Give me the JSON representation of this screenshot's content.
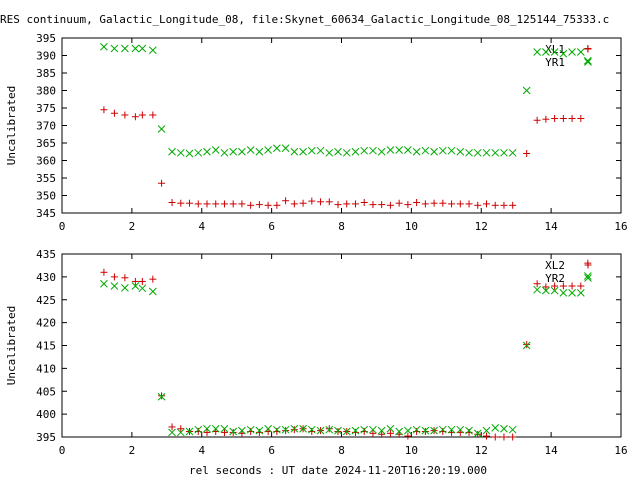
{
  "chart_data": {
    "title": "RES continuum, Galactic_Longitude_08, file:Skynet_60634_Galactic_Longitude_08_125144_75333.c",
    "xlabel": "rel seconds : UT date 2024-11-20T16:20:19.000",
    "x_ticks": [
      "0",
      "2",
      "4",
      "6",
      "8",
      "10",
      "12",
      "14",
      "16"
    ],
    "colors": {
      "red": "#cc0000",
      "green": "#00aa00"
    },
    "panels": [
      {
        "type": "scatter",
        "ylabel": "Uncalibrated",
        "xlim": [
          0,
          16
        ],
        "ylim": [
          345,
          395
        ],
        "y_ticks": [
          "345",
          "350",
          "355",
          "360",
          "365",
          "370",
          "375",
          "380",
          "385",
          "390",
          "395"
        ],
        "legend_position": "top-right",
        "series": [
          {
            "name": "XL1",
            "marker": "plus",
            "color": "#cc0000",
            "x": [
              1.2,
              1.5,
              1.8,
              2.1,
              2.3,
              2.6,
              2.85,
              3.15,
              3.4,
              3.65,
              3.9,
              4.15,
              4.4,
              4.65,
              4.9,
              5.15,
              5.4,
              5.65,
              5.9,
              6.15,
              6.4,
              6.65,
              6.9,
              7.15,
              7.4,
              7.65,
              7.9,
              8.15,
              8.4,
              8.65,
              8.9,
              9.15,
              9.4,
              9.65,
              9.9,
              10.15,
              10.4,
              10.65,
              10.9,
              11.15,
              11.4,
              11.65,
              11.9,
              12.15,
              12.4,
              12.65,
              12.9,
              13.3,
              13.6,
              13.85,
              14.1,
              14.35,
              14.6,
              14.85,
              15.05
            ],
            "y": [
              374.5,
              373.5,
              373,
              372.5,
              373,
              373,
              353.5,
              348,
              347.8,
              347.8,
              347.6,
              347.6,
              347.6,
              347.6,
              347.6,
              347.6,
              347.2,
              347.4,
              347.2,
              347.2,
              348.5,
              347.6,
              347.8,
              348.4,
              348.2,
              348.2,
              347.4,
              347.6,
              347.6,
              348,
              347.4,
              347.4,
              347.2,
              347.8,
              347.4,
              348,
              347.6,
              347.8,
              347.8,
              347.6,
              347.6,
              347.6,
              347.2,
              347.6,
              347.2,
              347.2,
              347.2,
              362,
              371.5,
              371.8,
              372,
              372,
              372,
              372,
              392
            ]
          },
          {
            "name": "YR1",
            "marker": "cross",
            "color": "#00aa00",
            "x": [
              1.2,
              1.5,
              1.8,
              2.1,
              2.3,
              2.6,
              2.85,
              3.15,
              3.4,
              3.65,
              3.9,
              4.15,
              4.4,
              4.65,
              4.9,
              5.15,
              5.4,
              5.65,
              5.9,
              6.15,
              6.4,
              6.65,
              6.9,
              7.15,
              7.4,
              7.65,
              7.9,
              8.15,
              8.4,
              8.65,
              8.9,
              9.15,
              9.4,
              9.65,
              9.9,
              10.15,
              10.4,
              10.65,
              10.9,
              11.15,
              11.4,
              11.65,
              11.9,
              12.15,
              12.4,
              12.65,
              12.9,
              13.3,
              13.6,
              13.85,
              14.1,
              14.35,
              14.6,
              14.85,
              15.05
            ],
            "y": [
              392.5,
              392,
              392,
              392,
              392,
              391.5,
              369,
              362.5,
              362.2,
              362,
              362.2,
              362.5,
              363,
              362.2,
              362.5,
              362.5,
              363,
              362.5,
              363,
              363.5,
              363.5,
              362.5,
              362.5,
              362.8,
              362.8,
              362.2,
              362.5,
              362.2,
              362.5,
              362.8,
              362.8,
              362.5,
              363,
              363,
              363,
              362.5,
              362.8,
              362.5,
              362.8,
              362.8,
              362.5,
              362.2,
              362.2,
              362.2,
              362.2,
              362.2,
              362.2,
              380,
              391,
              391,
              391,
              390.5,
              391,
              391,
              388.5
            ]
          }
        ]
      },
      {
        "type": "scatter",
        "ylabel": "Uncalibrated",
        "xlim": [
          0,
          16
        ],
        "ylim": [
          395,
          435
        ],
        "y_ticks": [
          "395",
          "400",
          "405",
          "410",
          "415",
          "420",
          "425",
          "430",
          "435"
        ],
        "legend_position": "top-right",
        "series": [
          {
            "name": "XL2",
            "marker": "plus",
            "color": "#cc0000",
            "x": [
              1.2,
              1.5,
              1.8,
              2.1,
              2.3,
              2.6,
              2.85,
              3.15,
              3.4,
              3.65,
              3.9,
              4.15,
              4.4,
              4.65,
              4.9,
              5.15,
              5.4,
              5.65,
              5.9,
              6.15,
              6.4,
              6.65,
              6.9,
              7.15,
              7.4,
              7.65,
              7.9,
              8.15,
              8.4,
              8.65,
              8.9,
              9.15,
              9.4,
              9.65,
              9.9,
              10.15,
              10.4,
              10.65,
              10.9,
              11.15,
              11.4,
              11.65,
              11.9,
              12.15,
              12.4,
              12.65,
              12.9,
              13.3,
              13.6,
              13.85,
              14.1,
              14.35,
              14.6,
              14.85,
              15.05
            ],
            "y": [
              431,
              430,
              429.8,
              429,
              429,
              429.5,
              404,
              397.2,
              396.8,
              396.2,
              396.2,
              396,
              396.2,
              396,
              396,
              395.8,
              396.2,
              396,
              396.2,
              396.2,
              396.4,
              396.6,
              396.8,
              396.2,
              396.4,
              396.8,
              396.2,
              396.2,
              396,
              396.2,
              395.8,
              395.6,
              395.8,
              395.6,
              395.2,
              396.2,
              396.2,
              396.4,
              396.2,
              396,
              396,
              396,
              395.6,
              395.2,
              395,
              395,
              395,
              415.2,
              428.5,
              427.8,
              428,
              428,
              428,
              428,
              433
            ]
          },
          {
            "name": "YR2",
            "marker": "cross",
            "color": "#00aa00",
            "x": [
              1.2,
              1.5,
              1.8,
              2.1,
              2.3,
              2.6,
              2.85,
              3.15,
              3.4,
              3.65,
              3.9,
              4.15,
              4.4,
              4.65,
              4.9,
              5.15,
              5.4,
              5.65,
              5.9,
              6.15,
              6.4,
              6.65,
              6.9,
              7.15,
              7.4,
              7.65,
              7.9,
              8.15,
              8.4,
              8.65,
              8.9,
              9.15,
              9.4,
              9.65,
              9.9,
              10.15,
              10.4,
              10.65,
              10.9,
              11.15,
              11.4,
              11.65,
              11.9,
              12.15,
              12.4,
              12.65,
              12.9,
              13.3,
              13.6,
              13.85,
              14.1,
              14.35,
              14.6,
              14.85,
              15.05
            ],
            "y": [
              428.5,
              428,
              427.6,
              428,
              427.5,
              426.8,
              403.8,
              396,
              396,
              396.2,
              396.6,
              396.8,
              396.8,
              396.8,
              396.2,
              396.4,
              396.6,
              396.4,
              396.8,
              396.6,
              396.6,
              396.8,
              396.8,
              396.6,
              396.4,
              396.6,
              396.4,
              396.2,
              396.4,
              396.6,
              396.6,
              396.4,
              396.8,
              396.2,
              396.4,
              396.6,
              396.4,
              396.4,
              396.6,
              396.6,
              396.6,
              396.4,
              395.8,
              396.4,
              397,
              396.8,
              396.6,
              415,
              427.2,
              427,
              427,
              426.5,
              426.5,
              426.5,
              430.2
            ]
          }
        ]
      }
    ]
  }
}
